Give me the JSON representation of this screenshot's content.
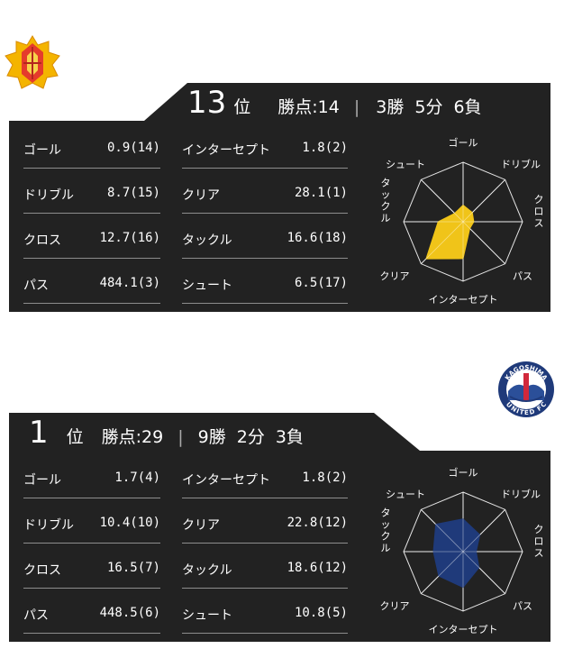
{
  "teams": [
    {
      "rank": "13",
      "rank_suffix": "位",
      "points_label": "勝点:14",
      "separator": "|",
      "wins": "3勝",
      "draws": "5分",
      "losses": "6負",
      "stats": [
        {
          "label": "ゴール",
          "value": "0.9(14)"
        },
        {
          "label": "インターセプト",
          "value": "1.8(2)"
        },
        {
          "label": "ドリブル",
          "value": "8.7(15)"
        },
        {
          "label": "クリア",
          "value": "28.1(1)"
        },
        {
          "label": "クロス",
          "value": "12.7(16)"
        },
        {
          "label": "タックル",
          "value": "16.6(18)"
        },
        {
          "label": "パス",
          "value": "484.1(3)"
        },
        {
          "label": "シュート",
          "value": "6.5(17)"
        }
      ],
      "radar_color": "#f0c419",
      "radar_values": [
        0.28,
        0.22,
        0.18,
        0.16,
        0.62,
        0.88,
        0.42,
        0.2
      ]
    },
    {
      "rank": "1",
      "rank_suffix": "位",
      "points_label": "勝点:29",
      "separator": "|",
      "wins": "9勝",
      "draws": "2分",
      "losses": "3負",
      "stats": [
        {
          "label": "ゴール",
          "value": "1.7(4)"
        },
        {
          "label": "インターセプト",
          "value": "1.8(2)"
        },
        {
          "label": "ドリブル",
          "value": "10.4(10)"
        },
        {
          "label": "クリア",
          "value": "22.8(12)"
        },
        {
          "label": "クロス",
          "value": "16.5(7)"
        },
        {
          "label": "タックル",
          "value": "18.6(12)"
        },
        {
          "label": "パス",
          "value": "448.5(6)"
        },
        {
          "label": "シュート",
          "value": "10.8(5)"
        }
      ],
      "radar_color": "#1f3a7a",
      "radar_values": [
        0.55,
        0.4,
        0.22,
        0.38,
        0.6,
        0.58,
        0.5,
        0.65
      ]
    }
  ],
  "radar_axes": [
    "ゴール",
    "ドリブル",
    "クロス",
    "パス",
    "インターセプト",
    "クリア",
    "タックル",
    "シュート"
  ],
  "away_logo_text": {
    "top": "KAGOSHIMA",
    "bottom": "UNITED FC"
  }
}
